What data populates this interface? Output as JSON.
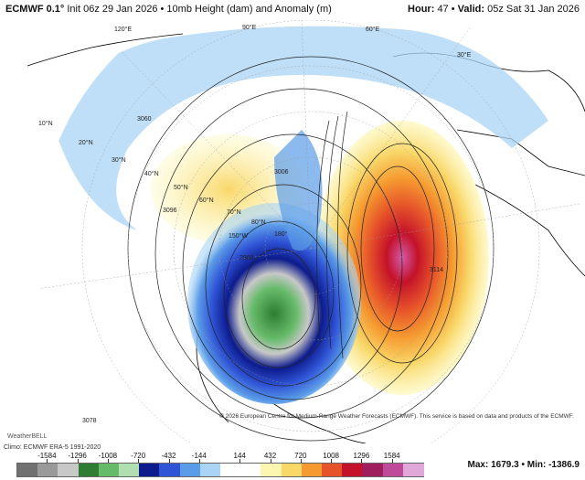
{
  "header": {
    "model": "ECMWF 0.1°",
    "init": "Init 06z 29 Jan 2026",
    "separator": "•",
    "field": "10mb Height (dam) and Anomaly (m)",
    "hour_label": "Hour:",
    "hour": "47",
    "valid_label": "Valid:",
    "valid": "05z Sat 31 Jan 2026"
  },
  "map": {
    "latitude_labels": [
      "10°N",
      "20°N",
      "30°N",
      "40°N",
      "50°N",
      "60°N",
      "70°N",
      "80°N"
    ],
    "longitude_labels": [
      "120°E",
      "90°E",
      "60°E",
      "30°E",
      "180°",
      "150°W"
    ],
    "contour_labels": [
      "3060",
      "3078",
      "3096",
      "3114",
      "2988",
      "3006"
    ],
    "credit": "© 2026 European Centre for Medium-Range Weather Forecasts (ECMWF). This service is based on data and products of the ECMWF.",
    "watermark": "WeatherBELL"
  },
  "footer": {
    "climo": "Climo: ECMWF ERA-5 1991-2020",
    "max_label": "Max:",
    "max": "1679.3",
    "min_label": "Min:",
    "min": "-1386.9",
    "separator": "•"
  },
  "colorbar": {
    "ticks": [
      "-1584",
      "-1296",
      "-1008",
      "-720",
      "-432",
      "-144",
      "144",
      "432",
      "720",
      "1008",
      "1296",
      "1584"
    ],
    "colors": [
      "#707070",
      "#9a9a9a",
      "#c8c8c8",
      "#2e7d32",
      "#66bb6a",
      "#b2dfb2",
      "#0d1b8c",
      "#2f54d6",
      "#5b9ce8",
      "#a9d4f5",
      "#ffffff",
      "#ffffff",
      "#fdf6b0",
      "#f9d86a",
      "#f59a30",
      "#e6532a",
      "#c4122a",
      "#9e1e5e",
      "#c04a9a",
      "#e0a8d8"
    ]
  }
}
